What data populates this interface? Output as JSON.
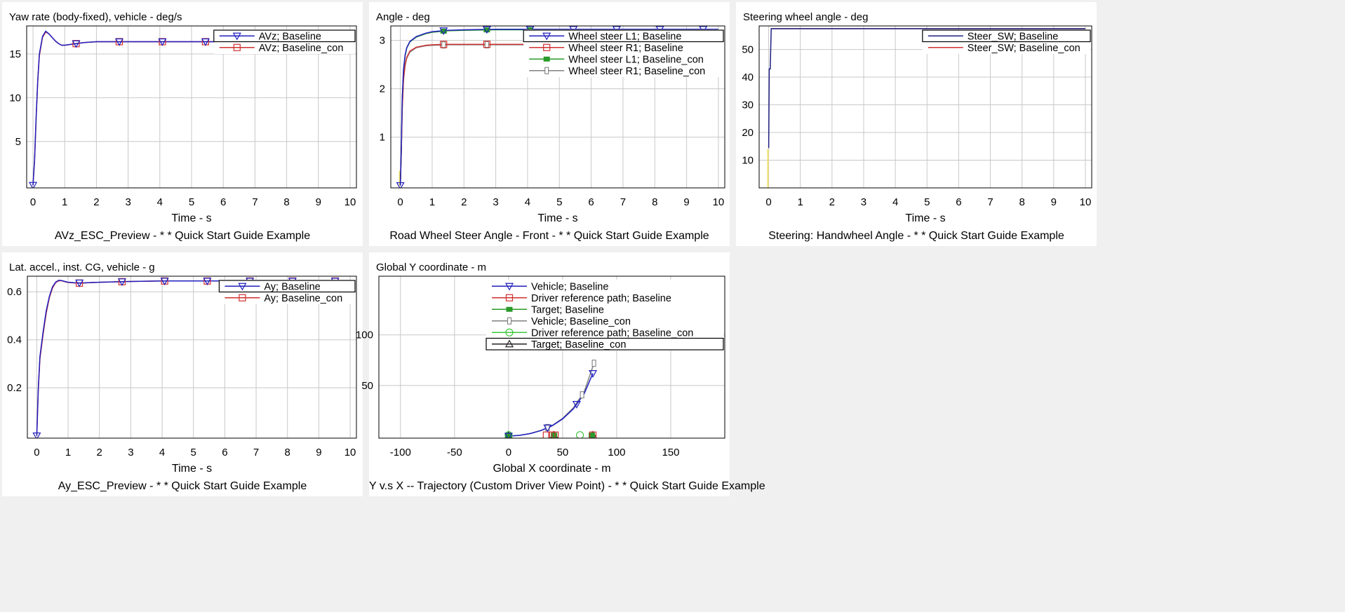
{
  "chart_data": [
    {
      "id": "yaw",
      "type": "line",
      "title": "Yaw rate (body-fixed), vehicle - deg/s",
      "xlabel": "Time - s",
      "caption": "AVz_ESC_Preview - * * Quick Start Guide Example",
      "xlim": [
        -0.2,
        10.2
      ],
      "ylim": [
        -0.3,
        18.2
      ],
      "xticks": [
        0,
        1,
        2,
        3,
        4,
        5,
        6,
        7,
        8,
        9,
        10
      ],
      "yticks": [
        5,
        10,
        15
      ],
      "grid": true,
      "legend_position": "top-right",
      "series": [
        {
          "name": "AVz; Baseline",
          "color": "#1f1fbf",
          "marker": "triangle-down",
          "x": [
            0,
            0.05,
            0.1,
            0.15,
            0.2,
            0.3,
            0.4,
            0.5,
            0.6,
            0.7,
            0.8,
            0.9,
            1.0,
            1.2,
            1.4,
            1.6,
            2,
            3,
            4,
            5,
            6,
            7,
            8,
            9,
            10
          ],
          "y": [
            0,
            3,
            8,
            12,
            15,
            17,
            17.6,
            17.3,
            16.9,
            16.5,
            16.2,
            16.0,
            16.0,
            16.1,
            16.2,
            16.3,
            16.4,
            16.4,
            16.4,
            16.4,
            16.4,
            16.4,
            16.4,
            16.4,
            16.4
          ],
          "markers_x": [
            0,
            1.36,
            2.72,
            4.08,
            5.44
          ]
        },
        {
          "name": "AVz; Baseline_con",
          "color": "#d03030",
          "marker": "square",
          "x": [
            0,
            0.05,
            0.1,
            0.15,
            0.2,
            0.3,
            0.4,
            0.5,
            0.6,
            0.7,
            0.8,
            0.9,
            1.0,
            1.2,
            1.4,
            1.6,
            2,
            3,
            4,
            5,
            6,
            7,
            8,
            9,
            10
          ],
          "y": [
            0,
            2.8,
            7.8,
            11.8,
            14.8,
            16.9,
            17.5,
            17.3,
            16.9,
            16.5,
            16.2,
            16.0,
            16.0,
            16.1,
            16.2,
            16.3,
            16.4,
            16.4,
            16.4,
            16.4,
            16.4,
            16.4,
            16.4,
            16.4,
            16.4
          ],
          "markers_x": [
            1.36,
            2.72,
            4.08,
            5.44
          ]
        }
      ]
    },
    {
      "id": "angle",
      "type": "line",
      "title": "Angle - deg",
      "xlabel": "Time - s",
      "caption": "Road Wheel Steer Angle - Front - * * Quick Start Guide Example",
      "xlim": [
        -0.3,
        10.2
      ],
      "ylim": [
        -0.05,
        3.3
      ],
      "xticks": [
        0,
        1,
        2,
        3,
        4,
        5,
        6,
        7,
        8,
        9,
        10
      ],
      "yticks": [
        1,
        2,
        3
      ],
      "grid": true,
      "legend_position": "top-right",
      "series": [
        {
          "name": "Wheel steer L1; Baseline",
          "color": "#1f1fbf",
          "marker": "triangle-down",
          "x": [
            0,
            0.03,
            0.06,
            0.1,
            0.15,
            0.2,
            0.3,
            0.5,
            0.8,
            1.0,
            1.5,
            2,
            3,
            4,
            5,
            6,
            7,
            8,
            9,
            10
          ],
          "y": [
            0,
            0.8,
            1.8,
            2.4,
            2.7,
            2.85,
            2.98,
            3.08,
            3.15,
            3.18,
            3.21,
            3.22,
            3.23,
            3.23,
            3.23,
            3.23,
            3.23,
            3.23,
            3.23,
            3.23
          ],
          "markers_x": [
            0,
            1.36,
            2.72,
            4.08,
            5.44,
            6.8,
            8.16,
            9.52
          ]
        },
        {
          "name": "Wheel steer R1; Baseline",
          "color": "#d03030",
          "marker": "square",
          "x": [
            0,
            0.03,
            0.06,
            0.1,
            0.15,
            0.2,
            0.3,
            0.5,
            0.8,
            1.0,
            1.5,
            2,
            3,
            4,
            5
          ],
          "y": [
            0,
            0.7,
            1.6,
            2.2,
            2.5,
            2.65,
            2.78,
            2.86,
            2.9,
            2.91,
            2.92,
            2.92,
            2.92,
            2.92,
            2.92
          ],
          "markers_x": [
            1.36,
            2.72,
            4.08
          ]
        },
        {
          "name": "Wheel steer L1; Baseline_con",
          "color": "#2a9a2a",
          "marker": "filled-square",
          "x": [
            0,
            0.03,
            0.06,
            0.1,
            0.15,
            0.2,
            0.3,
            0.5,
            0.8,
            1.0,
            1.5,
            2,
            3,
            4,
            5,
            6,
            7,
            8,
            9,
            10
          ],
          "y": [
            0,
            0.78,
            1.78,
            2.38,
            2.68,
            2.84,
            2.97,
            3.07,
            3.14,
            3.17,
            3.2,
            3.21,
            3.22,
            3.22,
            3.22,
            3.22,
            3.22,
            3.22,
            3.22,
            3.22
          ],
          "markers_x": [
            1.36,
            2.72,
            4.08
          ]
        },
        {
          "name": "Wheel steer R1; Baseline_con",
          "color": "#808080",
          "marker": "rect",
          "x": [
            0,
            0.03,
            0.06,
            0.1,
            0.15,
            0.2,
            0.3,
            0.5,
            0.8,
            1.0,
            1.5,
            2,
            3,
            4,
            5
          ],
          "y": [
            0,
            0.68,
            1.58,
            2.18,
            2.48,
            2.63,
            2.76,
            2.85,
            2.89,
            2.9,
            2.91,
            2.91,
            2.91,
            2.91,
            2.91
          ],
          "markers_x": [
            1.36,
            2.72,
            4.08
          ]
        }
      ]
    },
    {
      "id": "steer",
      "type": "line",
      "title": "Steering wheel angle - deg",
      "xlabel": "Time - s",
      "caption": "Steering: Handwheel Angle - * * Quick Start Guide Example",
      "xlim": [
        -0.3,
        10.2
      ],
      "ylim": [
        0,
        58.5
      ],
      "xticks": [
        0,
        1,
        2,
        3,
        4,
        5,
        6,
        7,
        8,
        9,
        10
      ],
      "yticks": [
        10,
        20,
        30,
        40,
        50
      ],
      "grid": true,
      "legend_position": "top-right",
      "series": [
        {
          "name": "Steer_SW; Baseline",
          "color": "#1f1f7f",
          "marker": "none",
          "x": [
            0,
            0.001,
            0.02,
            0.05,
            0.08,
            0.1,
            10
          ],
          "y": [
            14.5,
            14.5,
            43,
            43,
            57.5,
            57.5,
            57.5
          ]
        },
        {
          "name": "Steer_SW; Baseline_con",
          "color": "#d03030",
          "marker": "none",
          "x": [
            0.12,
            10
          ],
          "y": [
            57.5,
            57.5
          ]
        }
      ]
    },
    {
      "id": "ay",
      "type": "line",
      "title": "Lat. accel., inst. CG, vehicle - g",
      "xlabel": "Time - s",
      "caption": "Ay_ESC_Preview - * * Quick Start Guide Example",
      "xlim": [
        -0.3,
        10.2
      ],
      "ylim": [
        -0.01,
        0.665
      ],
      "xticks": [
        0,
        1,
        2,
        3,
        4,
        5,
        6,
        7,
        8,
        9,
        10
      ],
      "yticks": [
        0.2,
        0.4,
        0.6
      ],
      "grid": true,
      "legend_position": "top-right",
      "series": [
        {
          "name": "Ay; Baseline",
          "color": "#1f1fbf",
          "marker": "triangle-down",
          "x": [
            0,
            0.05,
            0.1,
            0.2,
            0.3,
            0.4,
            0.5,
            0.6,
            0.7,
            0.8,
            0.9,
            1.0,
            1.2,
            1.4,
            2,
            3,
            4,
            5,
            6,
            7,
            8,
            9,
            10
          ],
          "y": [
            0,
            0.2,
            0.33,
            0.43,
            0.52,
            0.58,
            0.62,
            0.64,
            0.648,
            0.647,
            0.643,
            0.64,
            0.638,
            0.637,
            0.64,
            0.643,
            0.645,
            0.645,
            0.645,
            0.645,
            0.645,
            0.645,
            0.645
          ],
          "markers_x": [
            0,
            1.36,
            2.72,
            4.08,
            5.44,
            6.8,
            8.16,
            9.52
          ]
        },
        {
          "name": "Ay; Baseline_con",
          "color": "#d03030",
          "marker": "square",
          "x": [
            0,
            0.05,
            0.1,
            0.2,
            0.3,
            0.4,
            0.5,
            0.6,
            0.7,
            0.8,
            0.9,
            1.0,
            1.2,
            1.4,
            2,
            3,
            4,
            5,
            6,
            7,
            8,
            9,
            10
          ],
          "y": [
            0,
            0.19,
            0.32,
            0.42,
            0.51,
            0.575,
            0.615,
            0.638,
            0.646,
            0.646,
            0.642,
            0.639,
            0.637,
            0.636,
            0.64,
            0.643,
            0.645,
            0.645,
            0.645,
            0.645,
            0.645,
            0.645,
            0.645
          ],
          "markers_x": [
            1.36,
            2.72,
            4.08,
            5.44,
            6.8,
            8.16,
            9.52
          ]
        }
      ]
    },
    {
      "id": "traj",
      "type": "scatter",
      "title": "Global Y coordinate - m",
      "xlabel": "Global X coordinate - m",
      "caption": "Y v.s X -- Trajectory (Custom Driver View Point) - * * Quick Start Guide Example",
      "xlim": [
        -120,
        200
      ],
      "ylim": [
        -2,
        158
      ],
      "xticks": [
        -100,
        -50,
        0,
        50,
        100,
        150
      ],
      "yticks": [
        50,
        100
      ],
      "grid": true,
      "legend_position": "top-right",
      "series": [
        {
          "name": "Vehicle; Baseline",
          "color": "#1f1fbf",
          "marker": "triangle-down",
          "x": [
            0,
            10,
            20,
            30,
            40,
            50,
            60,
            70,
            78
          ],
          "y": [
            0,
            0.8,
            2.5,
            5.5,
            10,
            17,
            27,
            42,
            62
          ],
          "markers_x": [
            0,
            36,
            63,
            78
          ]
        },
        {
          "name": "Driver reference path; Baseline",
          "color": "#d03030",
          "marker": "square",
          "x": [],
          "y": [],
          "points": [
            [
              35,
              1
            ],
            [
              40,
              1
            ],
            [
              43,
              1
            ],
            [
              78,
              1
            ]
          ]
        },
        {
          "name": "Target; Baseline",
          "color": "#2a9a2a",
          "marker": "filled-square",
          "x": [],
          "y": [],
          "points": [
            [
              0,
              1
            ],
            [
              42,
              1
            ],
            [
              77,
              1
            ]
          ]
        },
        {
          "name": "Vehicle; Baseline_con",
          "color": "#808080",
          "marker": "rect",
          "x": [
            0,
            10,
            20,
            30,
            40,
            50,
            60,
            70,
            79
          ],
          "y": [
            0,
            0.8,
            2.6,
            5.7,
            10.3,
            17.5,
            28,
            44,
            72
          ],
          "markers_x": [
            36,
            68,
            79
          ]
        },
        {
          "name": "Driver reference path; Baseline_con",
          "color": "#3cc83c",
          "marker": "circle",
          "x": [],
          "y": [],
          "points": [
            [
              0,
              1
            ],
            [
              66,
              1
            ]
          ]
        },
        {
          "name": "Target; Baseline_con",
          "color": "#222222",
          "marker": "triangle-up",
          "x": [],
          "y": [],
          "points": [
            [
              0,
              1
            ],
            [
              42,
              1
            ],
            [
              78,
              1
            ]
          ]
        }
      ]
    }
  ]
}
